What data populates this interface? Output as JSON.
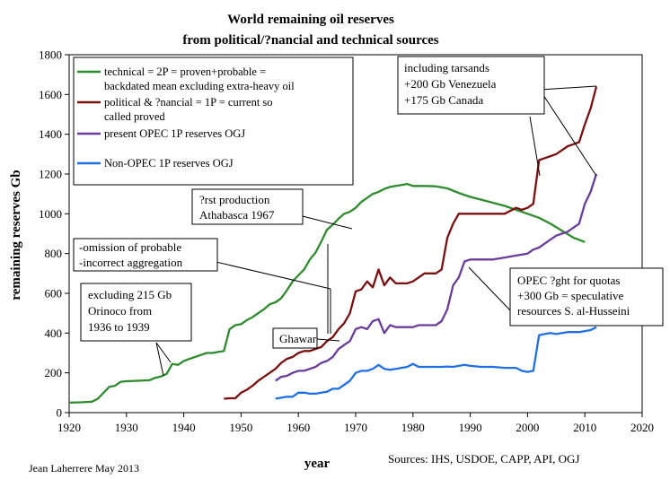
{
  "chart_data": {
    "type": "line",
    "title": "World remaining oil reserves",
    "subtitle": "from political/?nancial and technical sources",
    "xlabel": "year",
    "ylabel": "remaining reserves Gb",
    "xlim": [
      1920,
      2020
    ],
    "ylim": [
      0,
      1800
    ],
    "x_ticks": [
      "1920",
      "1930",
      "1940",
      "1950",
      "1960",
      "1970",
      "1980",
      "1990",
      "2000",
      "2010",
      "2020"
    ],
    "y_ticks": [
      "0",
      "200",
      "400",
      "600",
      "800",
      "1000",
      "1200",
      "1400",
      "1600",
      "1800"
    ],
    "grid": false,
    "legend_position": "top-left",
    "series": [
      {
        "name": "technical = 2P = proven+probable = backdated mean excluding extra-heavy oil",
        "color": "#2e8b2e",
        "points": [
          [
            1920,
            50
          ],
          [
            1922,
            52
          ],
          [
            1924,
            55
          ],
          [
            1925,
            70
          ],
          [
            1926,
            100
          ],
          [
            1927,
            130
          ],
          [
            1928,
            135
          ],
          [
            1929,
            155
          ],
          [
            1930,
            158
          ],
          [
            1932,
            160
          ],
          [
            1934,
            163
          ],
          [
            1935,
            175
          ],
          [
            1936,
            182
          ],
          [
            1937,
            195
          ],
          [
            1938,
            245
          ],
          [
            1939,
            240
          ],
          [
            1940,
            260
          ],
          [
            1941,
            270
          ],
          [
            1942,
            280
          ],
          [
            1943,
            290
          ],
          [
            1944,
            300
          ],
          [
            1945,
            300
          ],
          [
            1946,
            305
          ],
          [
            1947,
            310
          ],
          [
            1948,
            420
          ],
          [
            1949,
            440
          ],
          [
            1950,
            445
          ],
          [
            1951,
            465
          ],
          [
            1952,
            480
          ],
          [
            1953,
            500
          ],
          [
            1954,
            520
          ],
          [
            1955,
            545
          ],
          [
            1956,
            555
          ],
          [
            1957,
            575
          ],
          [
            1958,
            615
          ],
          [
            1959,
            660
          ],
          [
            1960,
            690
          ],
          [
            1961,
            720
          ],
          [
            1962,
            770
          ],
          [
            1963,
            805
          ],
          [
            1964,
            860
          ],
          [
            1965,
            920
          ],
          [
            1966,
            945
          ],
          [
            1967,
            975
          ],
          [
            1968,
            1000
          ],
          [
            1969,
            1010
          ],
          [
            1970,
            1030
          ],
          [
            1971,
            1060
          ],
          [
            1972,
            1080
          ],
          [
            1973,
            1100
          ],
          [
            1974,
            1110
          ],
          [
            1975,
            1125
          ],
          [
            1976,
            1135
          ],
          [
            1977,
            1140
          ],
          [
            1978,
            1145
          ],
          [
            1979,
            1150
          ],
          [
            1980,
            1140
          ],
          [
            1982,
            1140
          ],
          [
            1984,
            1138
          ],
          [
            1986,
            1128
          ],
          [
            1988,
            1105
          ],
          [
            1990,
            1085
          ],
          [
            1992,
            1070
          ],
          [
            1994,
            1055
          ],
          [
            1996,
            1040
          ],
          [
            1998,
            1020
          ],
          [
            2000,
            1000
          ],
          [
            2002,
            980
          ],
          [
            2004,
            950
          ],
          [
            2006,
            915
          ],
          [
            2008,
            880
          ],
          [
            2010,
            858
          ]
        ]
      },
      {
        "name": "political & ?nancial = 1P = current so called proved",
        "color": "#7b1010",
        "points": [
          [
            1947,
            70
          ],
          [
            1948,
            72
          ],
          [
            1949,
            72
          ],
          [
            1950,
            100
          ],
          [
            1951,
            115
          ],
          [
            1952,
            135
          ],
          [
            1953,
            160
          ],
          [
            1954,
            180
          ],
          [
            1955,
            200
          ],
          [
            1956,
            220
          ],
          [
            1957,
            250
          ],
          [
            1958,
            270
          ],
          [
            1959,
            280
          ],
          [
            1960,
            300
          ],
          [
            1961,
            310
          ],
          [
            1962,
            310
          ],
          [
            1963,
            320
          ],
          [
            1964,
            330
          ],
          [
            1965,
            360
          ],
          [
            1966,
            380
          ],
          [
            1967,
            420
          ],
          [
            1968,
            450
          ],
          [
            1969,
            500
          ],
          [
            1970,
            610
          ],
          [
            1971,
            620
          ],
          [
            1972,
            660
          ],
          [
            1973,
            630
          ],
          [
            1974,
            720
          ],
          [
            1975,
            640
          ],
          [
            1976,
            680
          ],
          [
            1977,
            650
          ],
          [
            1978,
            650
          ],
          [
            1979,
            650
          ],
          [
            1980,
            660
          ],
          [
            1981,
            680
          ],
          [
            1982,
            700
          ],
          [
            1983,
            700
          ],
          [
            1984,
            700
          ],
          [
            1985,
            720
          ],
          [
            1986,
            880
          ],
          [
            1987,
            950
          ],
          [
            1988,
            1000
          ],
          [
            1989,
            1000
          ],
          [
            1990,
            1000
          ],
          [
            1992,
            1000
          ],
          [
            1994,
            1000
          ],
          [
            1996,
            1000
          ],
          [
            1998,
            1030
          ],
          [
            1999,
            1020
          ],
          [
            2000,
            1030
          ],
          [
            2001,
            1050
          ],
          [
            2002,
            1270
          ],
          [
            2003,
            1280
          ],
          [
            2004,
            1290
          ],
          [
            2005,
            1300
          ],
          [
            2006,
            1320
          ],
          [
            2007,
            1340
          ],
          [
            2008,
            1350
          ],
          [
            2009,
            1360
          ],
          [
            2010,
            1450
          ],
          [
            2011,
            1530
          ],
          [
            2012,
            1640
          ]
        ]
      },
      {
        "name": "present OPEC 1P reserves OGJ",
        "color": "#6a3d9a",
        "points": [
          [
            1956,
            160
          ],
          [
            1957,
            180
          ],
          [
            1958,
            185
          ],
          [
            1959,
            200
          ],
          [
            1960,
            210
          ],
          [
            1961,
            210
          ],
          [
            1962,
            220
          ],
          [
            1963,
            230
          ],
          [
            1964,
            250
          ],
          [
            1965,
            260
          ],
          [
            1966,
            280
          ],
          [
            1967,
            320
          ],
          [
            1968,
            340
          ],
          [
            1969,
            360
          ],
          [
            1970,
            420
          ],
          [
            1971,
            430
          ],
          [
            1972,
            420
          ],
          [
            1973,
            460
          ],
          [
            1974,
            470
          ],
          [
            1975,
            400
          ],
          [
            1976,
            440
          ],
          [
            1977,
            430
          ],
          [
            1978,
            430
          ],
          [
            1979,
            430
          ],
          [
            1980,
            430
          ],
          [
            1981,
            440
          ],
          [
            1982,
            440
          ],
          [
            1983,
            440
          ],
          [
            1984,
            440
          ],
          [
            1985,
            460
          ],
          [
            1986,
            520
          ],
          [
            1987,
            640
          ],
          [
            1988,
            680
          ],
          [
            1989,
            760
          ],
          [
            1990,
            770
          ],
          [
            1992,
            770
          ],
          [
            1994,
            770
          ],
          [
            1996,
            780
          ],
          [
            1998,
            790
          ],
          [
            2000,
            800
          ],
          [
            2001,
            820
          ],
          [
            2002,
            830
          ],
          [
            2003,
            850
          ],
          [
            2004,
            870
          ],
          [
            2005,
            890
          ],
          [
            2006,
            900
          ],
          [
            2007,
            910
          ],
          [
            2008,
            930
          ],
          [
            2009,
            950
          ],
          [
            2010,
            1050
          ],
          [
            2011,
            1110
          ],
          [
            2012,
            1200
          ]
        ]
      },
      {
        "name": "Non-OPEC 1P reserves OGJ",
        "color": "#1f6fe5",
        "points": [
          [
            1956,
            70
          ],
          [
            1957,
            75
          ],
          [
            1958,
            80
          ],
          [
            1959,
            80
          ],
          [
            1960,
            100
          ],
          [
            1961,
            100
          ],
          [
            1962,
            95
          ],
          [
            1963,
            95
          ],
          [
            1964,
            100
          ],
          [
            1965,
            105
          ],
          [
            1966,
            120
          ],
          [
            1967,
            120
          ],
          [
            1968,
            140
          ],
          [
            1969,
            160
          ],
          [
            1970,
            200
          ],
          [
            1971,
            210
          ],
          [
            1972,
            210
          ],
          [
            1973,
            220
          ],
          [
            1974,
            240
          ],
          [
            1975,
            220
          ],
          [
            1976,
            215
          ],
          [
            1977,
            220
          ],
          [
            1978,
            225
          ],
          [
            1979,
            230
          ],
          [
            1980,
            245
          ],
          [
            1981,
            230
          ],
          [
            1982,
            230
          ],
          [
            1983,
            230
          ],
          [
            1984,
            230
          ],
          [
            1985,
            230
          ],
          [
            1986,
            232
          ],
          [
            1987,
            230
          ],
          [
            1988,
            235
          ],
          [
            1989,
            240
          ],
          [
            1990,
            235
          ],
          [
            1992,
            230
          ],
          [
            1994,
            230
          ],
          [
            1996,
            225
          ],
          [
            1998,
            225
          ],
          [
            1999,
            210
          ],
          [
            2000,
            205
          ],
          [
            2001,
            210
          ],
          [
            2002,
            390
          ],
          [
            2003,
            395
          ],
          [
            2004,
            400
          ],
          [
            2005,
            395
          ],
          [
            2006,
            400
          ],
          [
            2007,
            405
          ],
          [
            2008,
            405
          ],
          [
            2009,
            405
          ],
          [
            2010,
            410
          ],
          [
            2011,
            415
          ],
          [
            2012,
            430
          ]
        ]
      }
    ],
    "annotations": [
      {
        "lines": [
          "?rst production",
          "Athabasca 1967"
        ]
      },
      {
        "lines": [
          "-omission of probable",
          "-incorrect aggregation"
        ]
      },
      {
        "lines": [
          "excluding 215 Gb",
          "Orinoco from",
          "1936 to 1939"
        ]
      },
      {
        "lines": [
          "Ghawar"
        ]
      },
      {
        "lines": [
          "including tarsands",
          "+200 Gb Venezuela",
          "+175 Gb Canada"
        ]
      },
      {
        "lines": [
          "OPEC ?ght for quotas",
          "+300 Gb = speculative",
          "resources S. al-Husseini"
        ]
      }
    ],
    "credit": "Jean Laherrere May 2013",
    "sources": "Sources: IHS, USDOE, CAPP, API, OGJ"
  }
}
